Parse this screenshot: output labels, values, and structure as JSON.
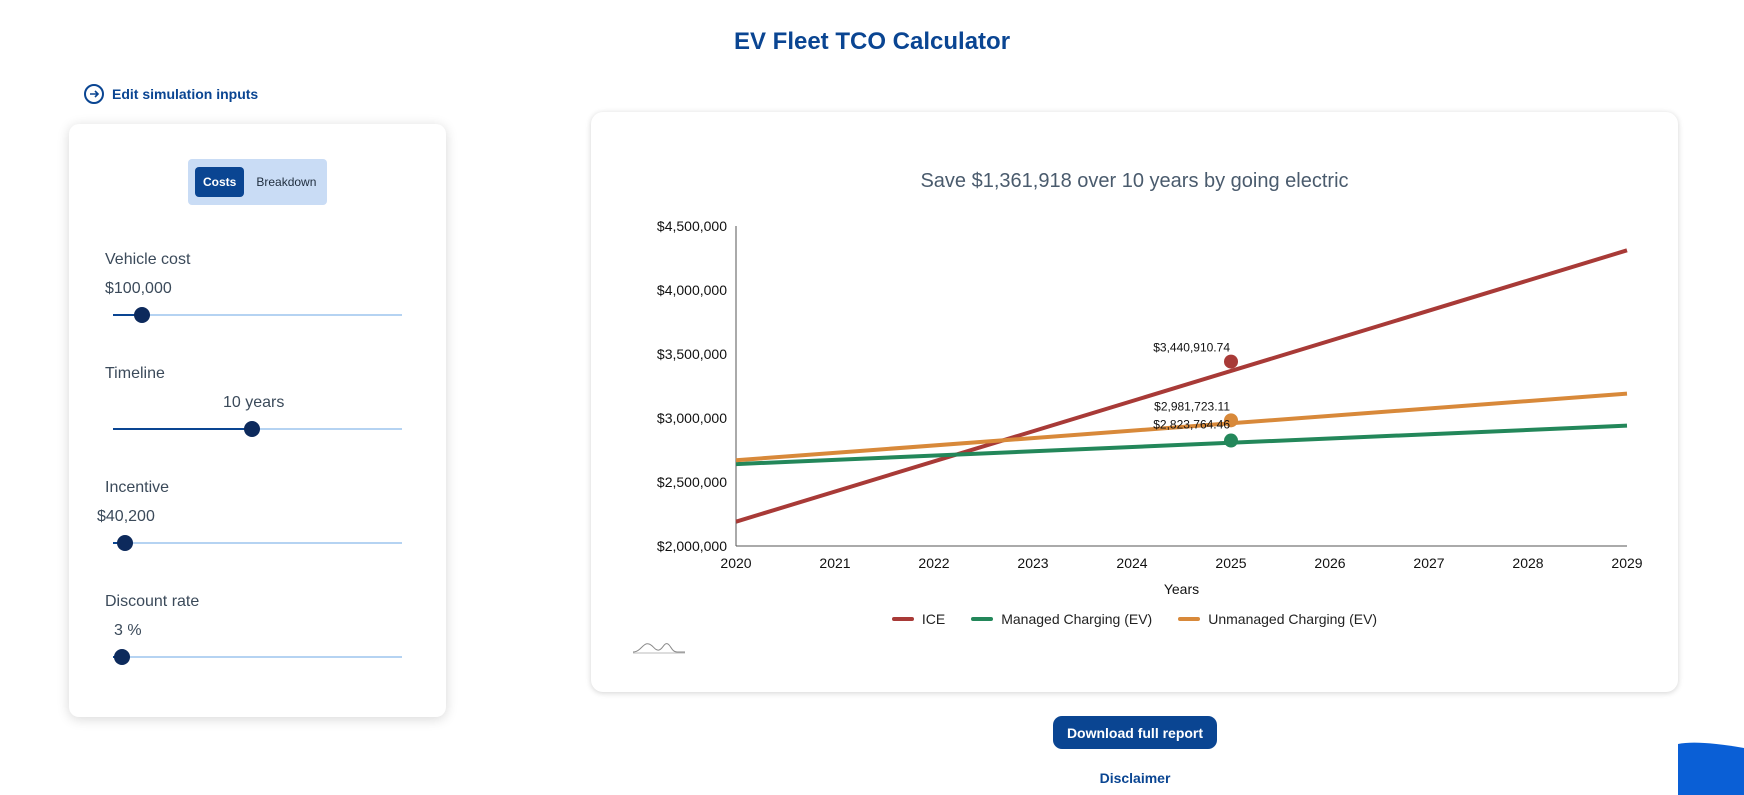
{
  "page": {
    "title": "EV Fleet TCO Calculator"
  },
  "edit_link": {
    "label": "Edit simulation inputs"
  },
  "panel": {
    "toggle": {
      "options": [
        "Costs",
        "Breakdown"
      ],
      "active": "Costs"
    },
    "sliders": [
      {
        "label": "Vehicle cost",
        "value": "$100,000",
        "position": 0.1
      },
      {
        "label": "Timeline",
        "value": "10 years",
        "position": 0.48
      },
      {
        "label": "Incentive",
        "value": "$40,200",
        "position": 0.04
      },
      {
        "label": "Discount rate",
        "value": "3 %",
        "position": 0.03
      }
    ]
  },
  "chart": {
    "title": "Save $1,361,918 over 10 years by going electric",
    "legend": [
      "ICE",
      "Managed Charging (EV)",
      "Unmanaged Charging (EV)"
    ],
    "annotations": [
      "$3,440,910.74",
      "$2,981,723.11",
      "$2,823,764.46"
    ]
  },
  "chart_data": {
    "type": "line",
    "title": "Save $1,361,918 over 10 years by going electric",
    "xlabel": "Years",
    "ylabel": "",
    "x": [
      2020,
      2021,
      2022,
      2023,
      2024,
      2025,
      2026,
      2027,
      2028,
      2029
    ],
    "xlim": [
      2020,
      2029
    ],
    "ylim": [
      2000000,
      4500000
    ],
    "y_ticks": [
      "$2,000,000",
      "$2,500,000",
      "$3,000,000",
      "$3,500,000",
      "$4,000,000",
      "$4,500,000"
    ],
    "y_tick_values": [
      2000000,
      2500000,
      3000000,
      3500000,
      4000000,
      4500000
    ],
    "series": [
      {
        "name": "ICE",
        "color": "#a83a37",
        "start": 2190000,
        "end": 4310000
      },
      {
        "name": "Managed Charging (EV)",
        "color": "#23875a",
        "start": 2640000,
        "end": 2940000
      },
      {
        "name": "Unmanaged Charging (EV)",
        "color": "#d8893a",
        "start": 2670000,
        "end": 3190000
      }
    ],
    "highlight_x": 2025,
    "highlights": [
      {
        "series": "ICE",
        "y": 3440910.74,
        "label": "$3,440,910.74"
      },
      {
        "series": "Unmanaged Charging (EV)",
        "y": 2981723.11,
        "label": "$2,981,723.11"
      },
      {
        "series": "Managed Charging (EV)",
        "y": 2823764.46,
        "label": "$2,823,764.46"
      }
    ]
  },
  "actions": {
    "download": "Download full report",
    "disclaimer": "Disclaimer"
  },
  "colors": {
    "brand": "#0a4592",
    "ice": "#a83a37",
    "managed": "#23875a",
    "unmanaged": "#d8893a"
  }
}
